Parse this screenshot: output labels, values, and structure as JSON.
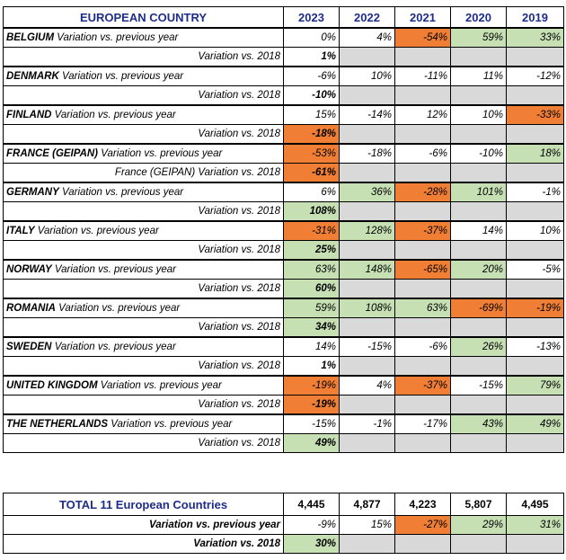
{
  "header": {
    "title": "EUROPEAN COUNTRY",
    "years": [
      "2023",
      "2022",
      "2021",
      "2020",
      "2019"
    ]
  },
  "countries": [
    {
      "name": "BELGIUM",
      "row1_label": "Variation vs. previous year",
      "row2_label": "Variation vs. 2018",
      "yoy": [
        "0%",
        "4%",
        "-54%",
        "59%",
        "33%"
      ],
      "yoy_colors": [
        "",
        "",
        "orange",
        "green",
        "green"
      ],
      "vs2018": "1%",
      "vs2018_color": ""
    },
    {
      "name": "DENMARK",
      "row1_label": "Variation vs. previous year",
      "row2_label": "Variation vs. 2018",
      "yoy": [
        "-6%",
        "10%",
        "-11%",
        "11%",
        "-12%"
      ],
      "yoy_colors": [
        "",
        "",
        "",
        "",
        ""
      ],
      "vs2018": "-10%",
      "vs2018_color": ""
    },
    {
      "name": "FINLAND",
      "row1_label": "Variation vs. previous year",
      "row2_label": "Variation vs. 2018",
      "yoy": [
        "15%",
        "-14%",
        "12%",
        "10%",
        "-33%"
      ],
      "yoy_colors": [
        "",
        "",
        "",
        "",
        "orange"
      ],
      "vs2018": "-18%",
      "vs2018_color": "orange"
    },
    {
      "name": "FRANCE (GEIPAN)",
      "row1_label": "Variation vs. previous year",
      "row2_label": "France (GEIPAN) Variation vs. 2018",
      "yoy": [
        "-53%",
        "-18%",
        "-6%",
        "-10%",
        "18%"
      ],
      "yoy_colors": [
        "orange",
        "",
        "",
        "",
        "green"
      ],
      "vs2018": "-61%",
      "vs2018_color": "orange"
    },
    {
      "name": "GERMANY",
      "row1_label": "Variation vs. previous year",
      "row2_label": "Variation vs. 2018",
      "yoy": [
        "6%",
        "36%",
        "-28%",
        "101%",
        "-1%"
      ],
      "yoy_colors": [
        "",
        "green",
        "orange",
        "green",
        ""
      ],
      "vs2018": "108%",
      "vs2018_color": "green"
    },
    {
      "name": "ITALY",
      "row1_label": "Variation vs. previous year",
      "row2_label": "Variation vs. 2018",
      "yoy": [
        "-31%",
        "128%",
        "-37%",
        "14%",
        "10%"
      ],
      "yoy_colors": [
        "orange",
        "green",
        "orange",
        "",
        ""
      ],
      "vs2018": "25%",
      "vs2018_color": "green"
    },
    {
      "name": "NORWAY",
      "row1_label": "Variation vs. previous year",
      "row2_label": "Variation vs. 2018",
      "yoy": [
        "63%",
        "148%",
        "-65%",
        "20%",
        "-5%"
      ],
      "yoy_colors": [
        "green",
        "green",
        "orange",
        "green",
        ""
      ],
      "vs2018": "60%",
      "vs2018_color": "green"
    },
    {
      "name": "ROMANIA",
      "row1_label": "Variation vs. previous year",
      "row2_label": "Variation vs. 2018",
      "yoy": [
        "59%",
        "108%",
        "63%",
        "-69%",
        "-19%"
      ],
      "yoy_colors": [
        "green",
        "green",
        "green",
        "orange",
        "orange"
      ],
      "vs2018": "34%",
      "vs2018_color": "green"
    },
    {
      "name": "SWEDEN",
      "row1_label": "Variation vs. previous year",
      "row2_label": "Variation vs. 2018",
      "yoy": [
        "14%",
        "-15%",
        "-6%",
        "26%",
        "-13%"
      ],
      "yoy_colors": [
        "",
        "",
        "",
        "green",
        ""
      ],
      "vs2018": "1%",
      "vs2018_color": ""
    },
    {
      "name": "UNITED KINGDOM",
      "row1_label": "Variation vs. previous year",
      "row2_label": "Variation vs. 2018",
      "yoy": [
        "-19%",
        "4%",
        "-37%",
        "-15%",
        "79%"
      ],
      "yoy_colors": [
        "orange",
        "",
        "orange",
        "",
        "green"
      ],
      "vs2018": "-19%",
      "vs2018_color": "orange"
    },
    {
      "name": "THE NETHERLANDS",
      "row1_label": "Variation vs. previous year",
      "row2_label": "Variation vs. 2018",
      "yoy": [
        "-15%",
        "-1%",
        "-17%",
        "43%",
        "49%"
      ],
      "yoy_colors": [
        "",
        "",
        "",
        "green",
        "green"
      ],
      "vs2018": "49%",
      "vs2018_color": "green"
    }
  ],
  "total": {
    "title": "TOTAL 11 European Countries",
    "counts": [
      "4,445",
      "4,877",
      "4,223",
      "5,807",
      "4,495"
    ],
    "yoy_label": "Variation vs. previous year",
    "yoy": [
      "-9%",
      "15%",
      "-27%",
      "29%",
      "31%"
    ],
    "yoy_colors": [
      "",
      "",
      "orange",
      "green",
      "green"
    ],
    "vs2018_label": "Variation vs. 2018",
    "vs2018": "30%",
    "vs2018_color": "green"
  }
}
